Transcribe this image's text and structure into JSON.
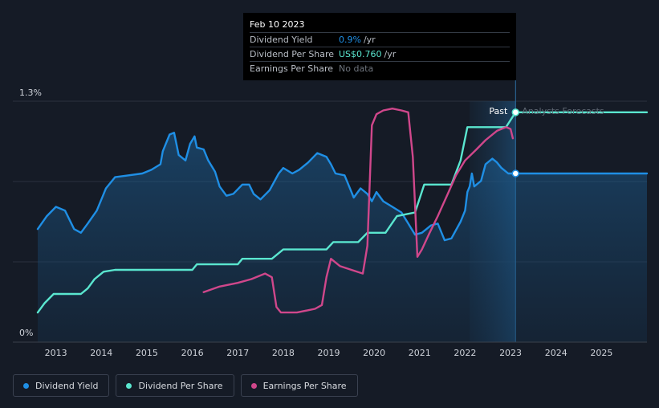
{
  "tooltip": {
    "date": "Feb 10 2023",
    "rows": [
      {
        "label": "Dividend Yield",
        "value": "0.9%",
        "unit": "/yr"
      },
      {
        "label": "Dividend Per Share",
        "value": "US$0.760",
        "unit": "/yr"
      },
      {
        "label": "Earnings Per Share",
        "value": "No data",
        "unit": ""
      }
    ]
  },
  "legend": [
    {
      "label": "Dividend Yield",
      "color": "#1f8fe5"
    },
    {
      "label": "Dividend Per Share",
      "color": "#5ae6cf"
    },
    {
      "label": "Earnings Per Share",
      "color": "#d0478b"
    }
  ],
  "chart_data": {
    "type": "line",
    "y_tick_labels": [
      "1.3%",
      "0%"
    ],
    "ylim": [
      0,
      1.3
    ],
    "x_tick_labels": [
      "2013",
      "2014",
      "2015",
      "2016",
      "2017",
      "2018",
      "2019",
      "2020",
      "2021",
      "2022",
      "2023",
      "2024",
      "2025"
    ],
    "xlim": [
      2012.6,
      2026.0
    ],
    "past_label": "Past",
    "forecast_label": "Analysts Forecasts",
    "forecast_start": 2022.1,
    "current_date": 2023.11,
    "grid": "horizontal",
    "series": [
      {
        "name": "Dividend Yield",
        "color": "#1f8fe5",
        "area": true,
        "points": [
          [
            2012.6,
            0.61
          ],
          [
            2012.8,
            0.68
          ],
          [
            2013.0,
            0.73
          ],
          [
            2013.2,
            0.71
          ],
          [
            2013.4,
            0.61
          ],
          [
            2013.55,
            0.59
          ],
          [
            2013.7,
            0.64
          ],
          [
            2013.9,
            0.71
          ],
          [
            2014.1,
            0.83
          ],
          [
            2014.3,
            0.89
          ],
          [
            2014.6,
            0.9
          ],
          [
            2014.9,
            0.91
          ],
          [
            2015.1,
            0.93
          ],
          [
            2015.3,
            0.96
          ],
          [
            2015.35,
            1.03
          ],
          [
            2015.5,
            1.12
          ],
          [
            2015.6,
            1.13
          ],
          [
            2015.7,
            1.01
          ],
          [
            2015.85,
            0.98
          ],
          [
            2015.95,
            1.07
          ],
          [
            2016.05,
            1.11
          ],
          [
            2016.1,
            1.05
          ],
          [
            2016.25,
            1.04
          ],
          [
            2016.35,
            0.98
          ],
          [
            2016.5,
            0.92
          ],
          [
            2016.6,
            0.84
          ],
          [
            2016.75,
            0.79
          ],
          [
            2016.9,
            0.8
          ],
          [
            2017.1,
            0.85
          ],
          [
            2017.25,
            0.85
          ],
          [
            2017.35,
            0.8
          ],
          [
            2017.5,
            0.77
          ],
          [
            2017.7,
            0.82
          ],
          [
            2017.9,
            0.91
          ],
          [
            2018.0,
            0.94
          ],
          [
            2018.2,
            0.91
          ],
          [
            2018.35,
            0.93
          ],
          [
            2018.55,
            0.97
          ],
          [
            2018.75,
            1.02
          ],
          [
            2018.95,
            1.0
          ],
          [
            2019.05,
            0.96
          ],
          [
            2019.15,
            0.91
          ],
          [
            2019.35,
            0.9
          ],
          [
            2019.55,
            0.78
          ],
          [
            2019.7,
            0.83
          ],
          [
            2019.85,
            0.8
          ],
          [
            2019.95,
            0.76
          ],
          [
            2020.05,
            0.81
          ],
          [
            2020.2,
            0.76
          ],
          [
            2020.4,
            0.73
          ],
          [
            2020.6,
            0.7
          ],
          [
            2020.75,
            0.64
          ],
          [
            2020.9,
            0.58
          ],
          [
            2021.05,
            0.59
          ],
          [
            2021.25,
            0.63
          ],
          [
            2021.4,
            0.64
          ],
          [
            2021.55,
            0.55
          ],
          [
            2021.7,
            0.56
          ],
          [
            2021.9,
            0.65
          ],
          [
            2022.0,
            0.71
          ],
          [
            2022.05,
            0.81
          ],
          [
            2022.1,
            0.84
          ],
          [
            2022.15,
            0.91
          ],
          [
            2022.2,
            0.84
          ],
          [
            2022.35,
            0.87
          ],
          [
            2022.45,
            0.96
          ],
          [
            2022.6,
            0.99
          ],
          [
            2022.7,
            0.97
          ],
          [
            2022.8,
            0.94
          ],
          [
            2022.95,
            0.91
          ],
          [
            2023.11,
            0.91
          ],
          [
            2024.0,
            0.91
          ],
          [
            2025.0,
            0.91
          ],
          [
            2026.0,
            0.91
          ]
        ]
      },
      {
        "name": "Dividend Per Share",
        "color": "#5ae6cf",
        "area": false,
        "points": [
          [
            2012.6,
            0.16
          ],
          [
            2012.75,
            0.21
          ],
          [
            2012.95,
            0.26
          ],
          [
            2013.55,
            0.26
          ],
          [
            2013.7,
            0.29
          ],
          [
            2013.85,
            0.34
          ],
          [
            2014.05,
            0.38
          ],
          [
            2014.3,
            0.39
          ],
          [
            2016.0,
            0.39
          ],
          [
            2016.1,
            0.42
          ],
          [
            2017.0,
            0.42
          ],
          [
            2017.1,
            0.45
          ],
          [
            2017.75,
            0.45
          ],
          [
            2018.0,
            0.5
          ],
          [
            2018.95,
            0.5
          ],
          [
            2019.1,
            0.54
          ],
          [
            2019.65,
            0.54
          ],
          [
            2019.85,
            0.59
          ],
          [
            2020.25,
            0.59
          ],
          [
            2020.5,
            0.68
          ],
          [
            2020.9,
            0.7
          ],
          [
            2021.1,
            0.85
          ],
          [
            2021.7,
            0.85
          ],
          [
            2021.9,
            0.98
          ],
          [
            2022.05,
            1.16
          ],
          [
            2022.9,
            1.16
          ],
          [
            2023.11,
            1.24
          ],
          [
            2024.0,
            1.24
          ],
          [
            2025.0,
            1.24
          ],
          [
            2026.0,
            1.24
          ]
        ]
      },
      {
        "name": "Earnings Per Share",
        "color": "#d0478b",
        "area": false,
        "points": [
          [
            2016.25,
            0.27
          ],
          [
            2016.6,
            0.3
          ],
          [
            2017.0,
            0.32
          ],
          [
            2017.3,
            0.34
          ],
          [
            2017.6,
            0.37
          ],
          [
            2017.75,
            0.35
          ],
          [
            2017.85,
            0.19
          ],
          [
            2017.95,
            0.16
          ],
          [
            2018.3,
            0.16
          ],
          [
            2018.7,
            0.18
          ],
          [
            2018.85,
            0.2
          ],
          [
            2018.95,
            0.35
          ],
          [
            2019.05,
            0.45
          ],
          [
            2019.25,
            0.41
          ],
          [
            2019.5,
            0.39
          ],
          [
            2019.75,
            0.37
          ],
          [
            2019.85,
            0.52
          ],
          [
            2019.95,
            1.17
          ],
          [
            2020.05,
            1.23
          ],
          [
            2020.2,
            1.25
          ],
          [
            2020.4,
            1.26
          ],
          [
            2020.6,
            1.25
          ],
          [
            2020.75,
            1.24
          ],
          [
            2020.85,
            1.0
          ],
          [
            2020.95,
            0.46
          ],
          [
            2021.05,
            0.5
          ],
          [
            2021.2,
            0.58
          ],
          [
            2021.4,
            0.68
          ],
          [
            2021.6,
            0.79
          ],
          [
            2021.8,
            0.9
          ],
          [
            2022.0,
            0.98
          ],
          [
            2022.25,
            1.04
          ],
          [
            2022.45,
            1.09
          ],
          [
            2022.7,
            1.14
          ],
          [
            2022.9,
            1.16
          ],
          [
            2023.0,
            1.15
          ],
          [
            2023.05,
            1.1
          ]
        ]
      }
    ]
  }
}
